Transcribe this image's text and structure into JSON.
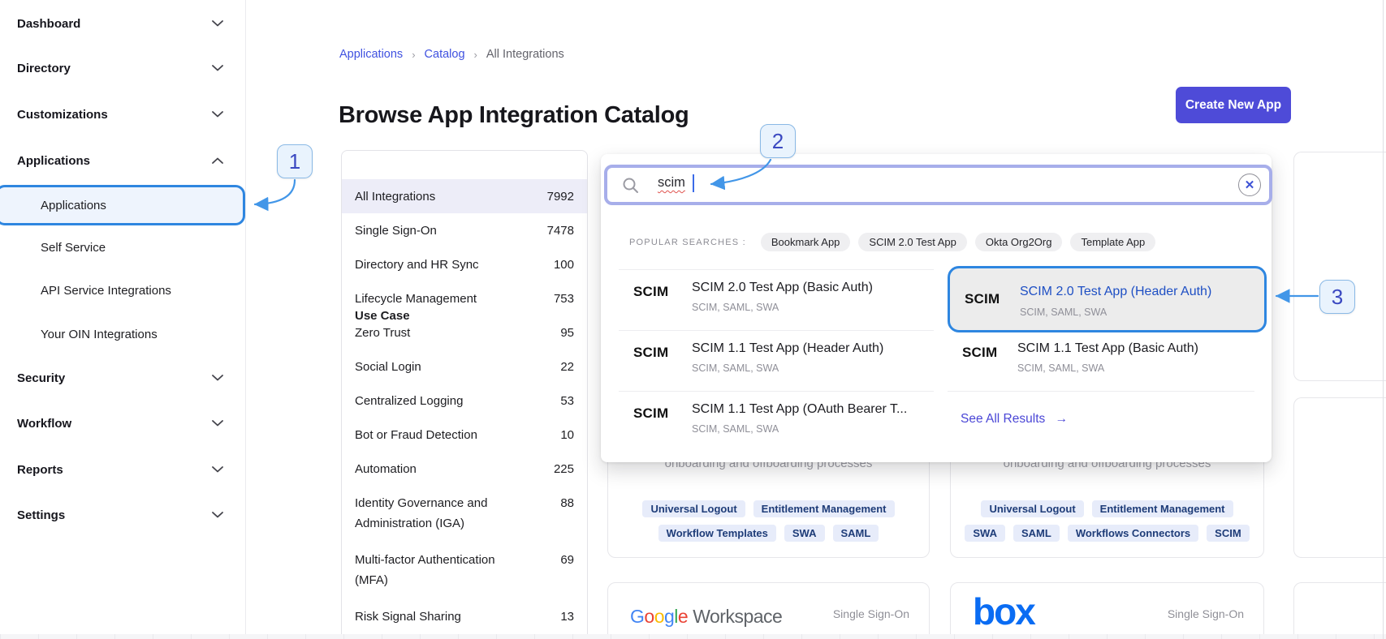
{
  "annotations": {
    "s1": "1",
    "s2": "2",
    "s3": "3"
  },
  "sidebar": {
    "items": [
      {
        "label": "Dashboard"
      },
      {
        "label": "Directory"
      },
      {
        "label": "Customizations"
      },
      {
        "label": "Applications"
      }
    ],
    "sub_items": [
      {
        "label": "Applications"
      },
      {
        "label": "Self Service"
      },
      {
        "label": "API Service Integrations"
      },
      {
        "label": "Your OIN Integrations"
      }
    ],
    "bottom": [
      {
        "label": "Security"
      },
      {
        "label": "Workflow"
      },
      {
        "label": "Reports"
      },
      {
        "label": "Settings"
      }
    ]
  },
  "breadcrumb": {
    "sep": "›",
    "items": [
      {
        "label": "Applications"
      },
      {
        "label": "Catalog"
      },
      {
        "label": "All Integrations"
      }
    ]
  },
  "header": {
    "title": "Browse App Integration Catalog",
    "create_button": "Create New App"
  },
  "usecase": {
    "title": "Use Case",
    "rows": [
      {
        "label": "All Integrations",
        "count": "7992"
      },
      {
        "label": "Single Sign-On",
        "count": "7478"
      },
      {
        "label": "Directory and HR Sync",
        "count": "100"
      },
      {
        "label": "Lifecycle Management",
        "count": "753"
      },
      {
        "label": "Zero Trust",
        "count": "95"
      },
      {
        "label": "Social Login",
        "count": "22"
      },
      {
        "label": "Centralized Logging",
        "count": "53"
      },
      {
        "label": "Bot or Fraud Detection",
        "count": "10"
      },
      {
        "label": "Automation",
        "count": "225"
      },
      {
        "label": "Identity Governance and Administration (IGA)",
        "count": "88"
      },
      {
        "label": "Multi-factor Authentication (MFA)",
        "count": "69"
      },
      {
        "label": "Risk Signal Sharing",
        "count": "13"
      }
    ]
  },
  "search": {
    "value": "scim",
    "popular_label": "POPULAR SEARCHES :",
    "popular": [
      "Bookmark App",
      "SCIM 2.0 Test App",
      "Okta Org2Org",
      "Template App"
    ],
    "scim_logo": "SCIM",
    "left": [
      {
        "title": "SCIM 2.0 Test App (Basic Auth)",
        "subtitle": "SCIM, SAML, SWA"
      },
      {
        "title": "SCIM 1.1 Test App (Header Auth)",
        "subtitle": "SCIM, SAML, SWA"
      },
      {
        "title": "SCIM 1.1 Test App (OAuth Bearer T...",
        "subtitle": "SCIM, SAML, SWA"
      }
    ],
    "right": [
      {
        "title": "SCIM 2.0 Test App (Header Auth)",
        "subtitle": "SCIM, SAML, SWA"
      },
      {
        "title": "SCIM 1.1 Test App (Basic Auth)",
        "subtitle": "SCIM, SAML, SWA"
      }
    ],
    "see_all": "See All Results",
    "see_all_arrow": "→",
    "clear_glyph": "✕"
  },
  "cards": {
    "left": {
      "fragment": "onboarding and offboarding processes",
      "tags": [
        "Universal Logout",
        "Entitlement Management",
        "Workflow Templates",
        "SWA",
        "SAML"
      ]
    },
    "right": {
      "fragment": "onboarding and offboarding processes",
      "tags": [
        "Universal Logout",
        "Entitlement Management",
        "SWA",
        "SAML",
        "Workflows Connectors",
        "SCIM"
      ]
    },
    "bottom_left": {
      "category": "Single Sign-On"
    },
    "bottom_right": {
      "category": "Single Sign-On"
    }
  },
  "brand": {
    "google_letters": [
      [
        "G",
        "#4285F4"
      ],
      [
        "o",
        "#EA4335"
      ],
      [
        "o",
        "#FBBC05"
      ],
      [
        "g",
        "#4285F4"
      ],
      [
        "l",
        "#34A853"
      ],
      [
        "e",
        "#EA4335"
      ]
    ],
    "google_suffix": "Workspace",
    "box": "box"
  },
  "colors": {
    "annotation_blue": "#2e86e0",
    "arrow_blue": "#4296e8",
    "button_indigo": "#4e4bd8",
    "link_indigo": "#3f51e0",
    "highlight_title_blue": "#1e4fc4",
    "selected_row_bg": "#ededf8",
    "search_border": "#a7aeea",
    "tag_bg": "#e7ecfa",
    "tag_text": "#1e3c78",
    "box_blue": "#0a6cf3"
  }
}
